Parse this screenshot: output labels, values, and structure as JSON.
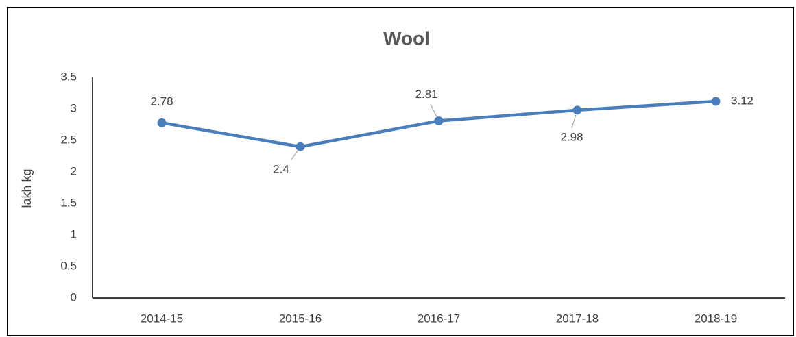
{
  "chart_data": {
    "type": "line",
    "title": "Wool",
    "y_label": "lakh kg",
    "categories": [
      "2014-15",
      "2015-16",
      "2016-17",
      "2017-18",
      "2018-19"
    ],
    "series": [
      {
        "name": "Wool",
        "color": "#4a7ebb",
        "values": [
          2.78,
          2.4,
          2.81,
          2.98,
          3.12
        ]
      }
    ],
    "ylim": [
      0,
      3.5
    ],
    "yticks": [
      0,
      0.5,
      1,
      1.5,
      2,
      2.5,
      3,
      3.5
    ],
    "grid": false
  }
}
